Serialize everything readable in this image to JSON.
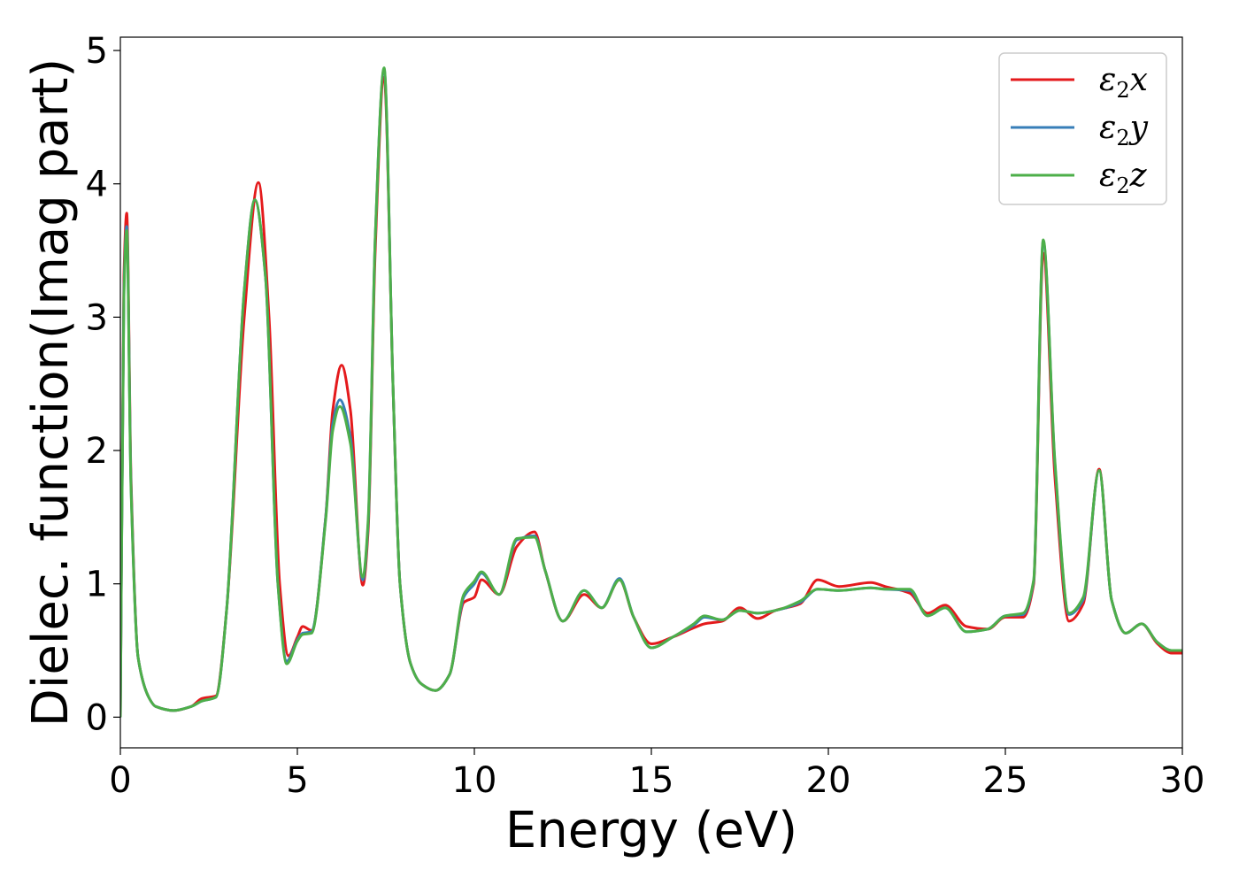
{
  "chart_data": {
    "type": "line",
    "title": "",
    "xlabel": "Energy (eV)",
    "ylabel": "Dielec. function(Imag part)",
    "xlim": [
      0,
      30
    ],
    "ylim": [
      -0.23,
      5.1
    ],
    "xticks": [
      0,
      5,
      10,
      15,
      20,
      25,
      30
    ],
    "yticks": [
      0,
      1,
      2,
      3,
      4,
      5
    ],
    "grid": false,
    "legend_position": "top-right",
    "series": [
      {
        "name": "ε2x",
        "symbol": "ε",
        "sub": "2",
        "axis": "x",
        "color": "#e41a1c",
        "x": [
          0,
          0.1,
          0.18,
          0.3,
          0.5,
          0.8,
          1.0,
          1.5,
          2.0,
          2.3,
          2.7,
          3.0,
          3.5,
          3.9,
          4.2,
          4.5,
          4.75,
          5.0,
          5.15,
          5.4,
          5.8,
          6.0,
          6.25,
          6.5,
          6.85,
          7.0,
          7.2,
          7.45,
          7.7,
          7.9,
          8.2,
          8.5,
          8.9,
          9.3,
          9.7,
          10.0,
          10.2,
          10.7,
          11.2,
          11.7,
          12.0,
          12.5,
          13.1,
          13.6,
          14.1,
          14.5,
          15.0,
          15.6,
          16.2,
          16.5,
          17.0,
          17.5,
          18.0,
          18.5,
          19.2,
          19.7,
          20.3,
          21.2,
          21.6,
          22.3,
          22.8,
          23.3,
          23.9,
          24.5,
          25.0,
          25.5,
          25.8,
          26.07,
          26.4,
          26.8,
          27.2,
          27.65,
          28.0,
          28.4,
          28.85,
          29.3,
          29.7,
          30
        ],
        "y": [
          0.0,
          3.3,
          3.78,
          1.8,
          0.45,
          0.15,
          0.08,
          0.05,
          0.08,
          0.14,
          0.16,
          0.8,
          3.0,
          4.01,
          3.0,
          1.0,
          0.46,
          0.6,
          0.68,
          0.65,
          1.5,
          2.3,
          2.64,
          2.3,
          0.99,
          1.4,
          3.5,
          4.8,
          2.5,
          1.0,
          0.4,
          0.25,
          0.2,
          0.32,
          0.86,
          0.9,
          1.03,
          0.92,
          1.28,
          1.39,
          1.1,
          0.72,
          0.92,
          0.82,
          1.03,
          0.75,
          0.55,
          0.6,
          0.67,
          0.7,
          0.72,
          0.82,
          0.74,
          0.8,
          0.85,
          1.03,
          0.98,
          1.01,
          0.98,
          0.93,
          0.78,
          0.84,
          0.68,
          0.66,
          0.75,
          0.75,
          1.0,
          3.48,
          1.8,
          0.72,
          0.85,
          1.86,
          0.88,
          0.63,
          0.7,
          0.55,
          0.48,
          0.48
        ]
      },
      {
        "name": "ε2y",
        "symbol": "ε",
        "sub": "2",
        "axis": "y",
        "color": "#377eb8",
        "x": [
          0,
          0.1,
          0.18,
          0.3,
          0.5,
          0.8,
          1.0,
          1.5,
          2.0,
          2.3,
          2.7,
          3.0,
          3.5,
          3.8,
          4.1,
          4.45,
          4.7,
          5.0,
          5.15,
          5.4,
          5.8,
          6.0,
          6.2,
          6.5,
          6.85,
          7.0,
          7.2,
          7.45,
          7.7,
          7.9,
          8.2,
          8.5,
          8.9,
          9.3,
          9.7,
          10.0,
          10.2,
          10.7,
          11.2,
          11.7,
          12.0,
          12.5,
          13.1,
          13.6,
          14.1,
          14.5,
          15.0,
          15.6,
          16.2,
          16.5,
          17.0,
          17.5,
          18.0,
          18.5,
          19.2,
          19.7,
          20.3,
          21.2,
          21.6,
          22.3,
          22.8,
          23.3,
          23.9,
          24.5,
          25.0,
          25.5,
          25.8,
          26.07,
          26.4,
          26.8,
          27.2,
          27.65,
          28.0,
          28.4,
          28.85,
          29.3,
          29.7,
          30
        ],
        "y": [
          0.0,
          3.2,
          3.68,
          1.75,
          0.45,
          0.15,
          0.08,
          0.05,
          0.08,
          0.12,
          0.15,
          0.8,
          3.2,
          3.88,
          3.3,
          1.0,
          0.42,
          0.58,
          0.63,
          0.64,
          1.5,
          2.2,
          2.38,
          2.1,
          1.03,
          1.45,
          3.6,
          4.86,
          2.5,
          1.0,
          0.4,
          0.25,
          0.2,
          0.32,
          0.9,
          1.0,
          1.08,
          0.92,
          1.33,
          1.36,
          1.1,
          0.72,
          0.95,
          0.82,
          1.04,
          0.75,
          0.52,
          0.6,
          0.69,
          0.75,
          0.73,
          0.8,
          0.78,
          0.8,
          0.86,
          0.96,
          0.95,
          0.97,
          0.96,
          0.95,
          0.76,
          0.82,
          0.64,
          0.66,
          0.76,
          0.77,
          1.02,
          3.57,
          1.9,
          0.77,
          0.88,
          1.85,
          0.88,
          0.63,
          0.7,
          0.56,
          0.5,
          0.5
        ]
      },
      {
        "name": "ε2z",
        "symbol": "ε",
        "sub": "2",
        "axis": "z",
        "color": "#4daf4a",
        "x": [
          0,
          0.1,
          0.18,
          0.3,
          0.5,
          0.8,
          1.0,
          1.5,
          2.0,
          2.3,
          2.7,
          3.0,
          3.5,
          3.8,
          4.1,
          4.45,
          4.7,
          5.0,
          5.15,
          5.4,
          5.8,
          6.0,
          6.2,
          6.5,
          6.85,
          7.0,
          7.2,
          7.45,
          7.7,
          7.9,
          8.2,
          8.5,
          8.9,
          9.3,
          9.7,
          10.0,
          10.2,
          10.7,
          11.2,
          11.7,
          12.0,
          12.5,
          13.1,
          13.6,
          14.1,
          14.5,
          15.0,
          15.6,
          16.2,
          16.5,
          17.0,
          17.5,
          18.0,
          18.5,
          19.2,
          19.7,
          20.3,
          21.2,
          21.6,
          22.3,
          22.8,
          23.3,
          23.9,
          24.5,
          25.0,
          25.5,
          25.8,
          26.07,
          26.4,
          26.8,
          27.2,
          27.65,
          28.0,
          28.4,
          28.85,
          29.3,
          29.7,
          30
        ],
        "y": [
          0.0,
          3.15,
          3.65,
          1.72,
          0.45,
          0.15,
          0.08,
          0.05,
          0.08,
          0.12,
          0.15,
          0.8,
          3.2,
          3.88,
          3.3,
          1.0,
          0.4,
          0.57,
          0.62,
          0.63,
          1.48,
          2.15,
          2.33,
          2.05,
          1.05,
          1.48,
          3.6,
          4.87,
          2.5,
          1.0,
          0.4,
          0.25,
          0.2,
          0.32,
          0.92,
          1.02,
          1.09,
          0.92,
          1.34,
          1.35,
          1.1,
          0.72,
          0.95,
          0.82,
          1.03,
          0.75,
          0.52,
          0.6,
          0.7,
          0.76,
          0.73,
          0.8,
          0.78,
          0.8,
          0.87,
          0.96,
          0.95,
          0.97,
          0.96,
          0.96,
          0.76,
          0.82,
          0.64,
          0.66,
          0.76,
          0.78,
          1.03,
          3.58,
          1.92,
          0.78,
          0.9,
          1.85,
          0.88,
          0.63,
          0.7,
          0.56,
          0.5,
          0.5
        ]
      }
    ]
  }
}
